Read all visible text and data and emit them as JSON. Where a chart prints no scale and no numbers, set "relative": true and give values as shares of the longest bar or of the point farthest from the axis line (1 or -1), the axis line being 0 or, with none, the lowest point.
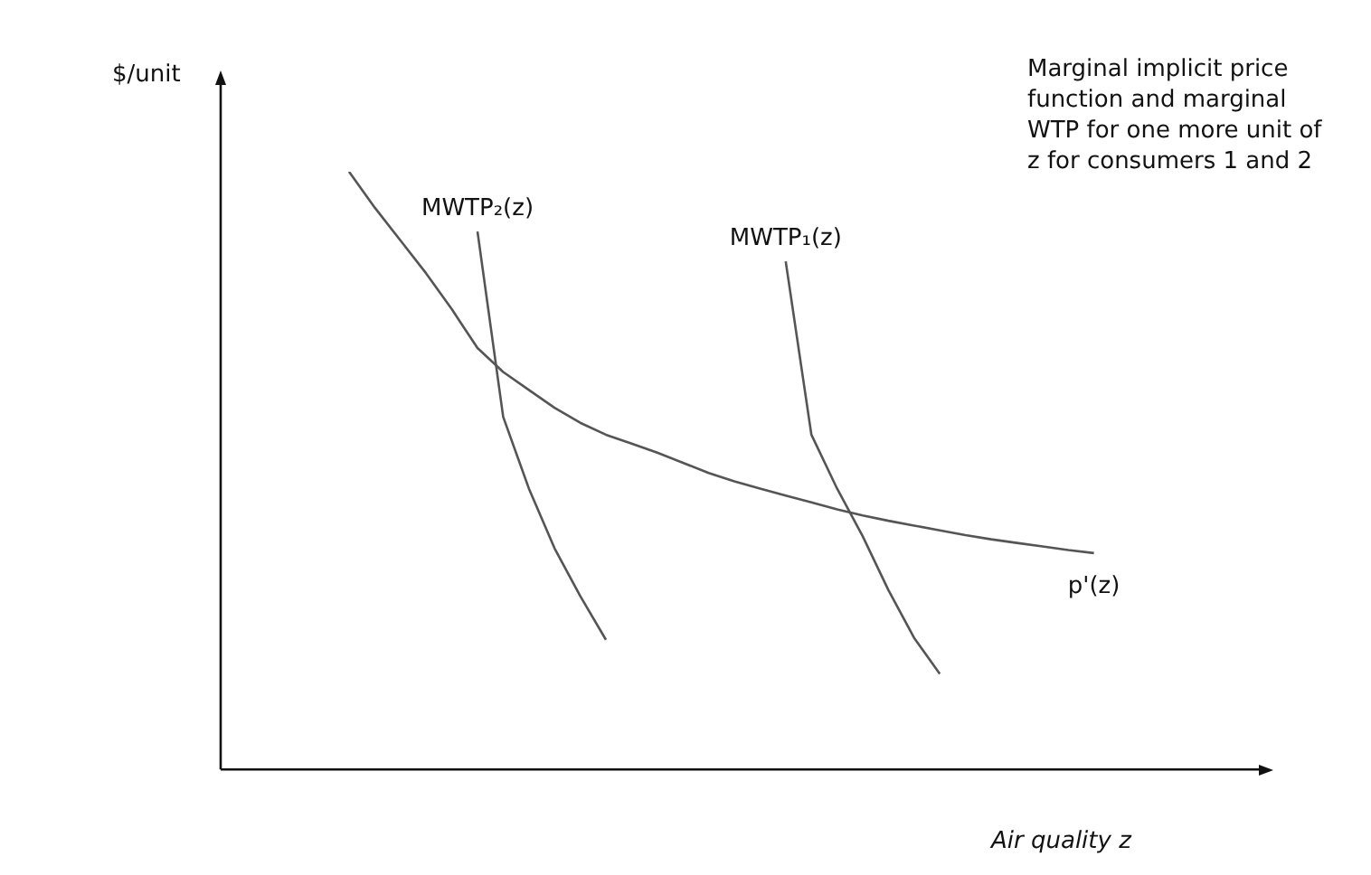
{
  "chart_data": {
    "type": "line",
    "relative": true,
    "xlabel": "Air quality z",
    "ylabel": "$/unit",
    "annotations": [
      "Marginal implicit price function and marginal WTP for one more unit of z for consumers 1 and 2"
    ],
    "categories": [
      null,
      null,
      null,
      null,
      null,
      null,
      null,
      null,
      null,
      null,
      null,
      null,
      null,
      null,
      null,
      null,
      null,
      null,
      null,
      null,
      null,
      null,
      null,
      null,
      null,
      null,
      null,
      null,
      null,
      null,
      null,
      null,
      null,
      null,
      null,
      null,
      null,
      null,
      null,
      null,
      null
    ],
    "grid": false,
    "legend": false,
    "marker": "none",
    "line_style": "solid",
    "series": [
      {
        "name": "MWTP₂(z)",
        "color": "#555555",
        "values": [
          null,
          null,
          null,
          null,
          null,
          null,
          null,
          null,
          null,
          null,
          0.9,
          0.59,
          0.47,
          0.37,
          0.29,
          0.217,
          null,
          null,
          null,
          null,
          null,
          null,
          null,
          null,
          null,
          null,
          null,
          null,
          null,
          null,
          null,
          null,
          null,
          null,
          null,
          null,
          null,
          null,
          null,
          null,
          null
        ]
      },
      {
        "name": "MWTP₁(z)",
        "color": "#555555",
        "values": [
          null,
          null,
          null,
          null,
          null,
          null,
          null,
          null,
          null,
          null,
          null,
          null,
          null,
          null,
          null,
          null,
          null,
          null,
          null,
          null,
          null,
          null,
          0.85,
          0.56,
          0.47,
          0.39,
          0.3,
          0.22,
          0.16,
          null,
          null,
          null,
          null,
          null,
          null,
          null,
          null,
          null,
          null,
          null,
          null
        ]
      },
      {
        "name": "p'(z)",
        "color": "#555555",
        "values": [
          null,
          null,
          null,
          null,
          null,
          1.0,
          0.94,
          0.885,
          0.83,
          0.77,
          0.705,
          0.665,
          0.635,
          0.605,
          0.58,
          0.56,
          0.545,
          0.53,
          0.513,
          0.496,
          0.482,
          0.47,
          0.458,
          0.447,
          0.435,
          0.425,
          0.416,
          0.408,
          0.4,
          0.392,
          0.385,
          0.379,
          0.373,
          0.367,
          0.362,
          null,
          null,
          null,
          null,
          null,
          null
        ]
      }
    ]
  }
}
